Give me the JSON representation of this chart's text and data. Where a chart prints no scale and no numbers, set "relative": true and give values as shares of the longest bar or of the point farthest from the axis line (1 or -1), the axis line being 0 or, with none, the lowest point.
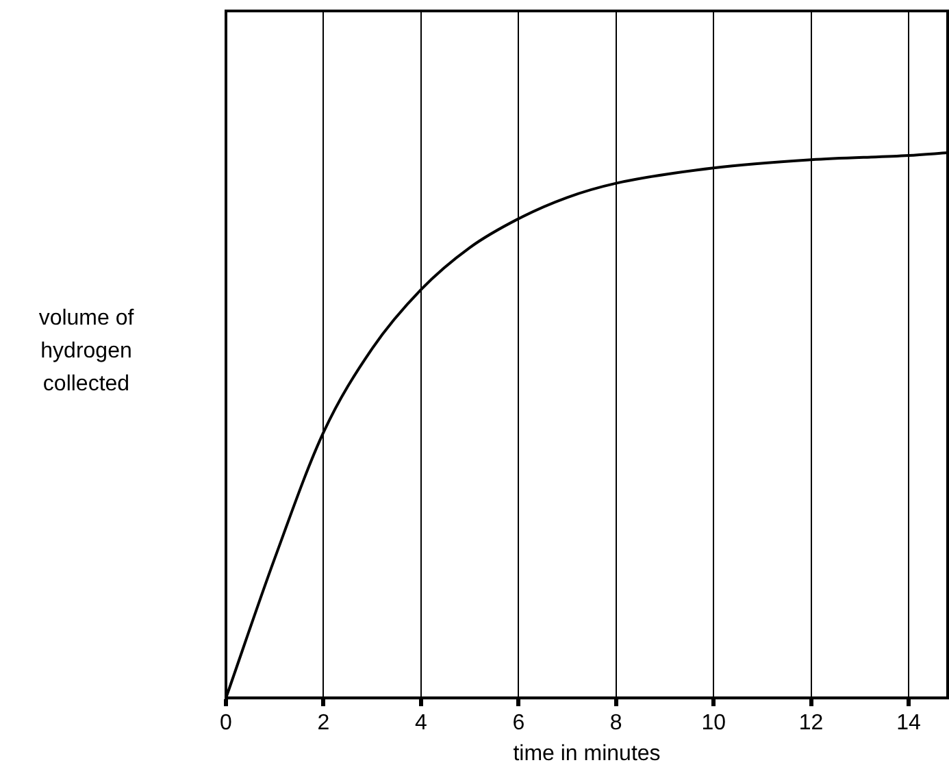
{
  "chart_data": {
    "type": "line",
    "xlabel": "time in minutes",
    "ylabel": "volume of hydrogen collected",
    "relative": true,
    "x": [
      0,
      1,
      2,
      3,
      4,
      5,
      6,
      7,
      8,
      10,
      12,
      14,
      14.8
    ],
    "series": [
      {
        "color": "#000000",
        "values": [
          0,
          0.256,
          0.487,
          0.641,
          0.749,
          0.826,
          0.879,
          0.918,
          0.944,
          0.972,
          0.987,
          0.995,
          1
        ]
      }
    ],
    "xlim": [
      0,
      14.8
    ],
    "xticks": [
      0,
      2,
      4,
      6,
      8,
      10,
      12,
      14
    ],
    "grid": "x",
    "legend": false,
    "marker": "none",
    "line_style": "solid"
  }
}
